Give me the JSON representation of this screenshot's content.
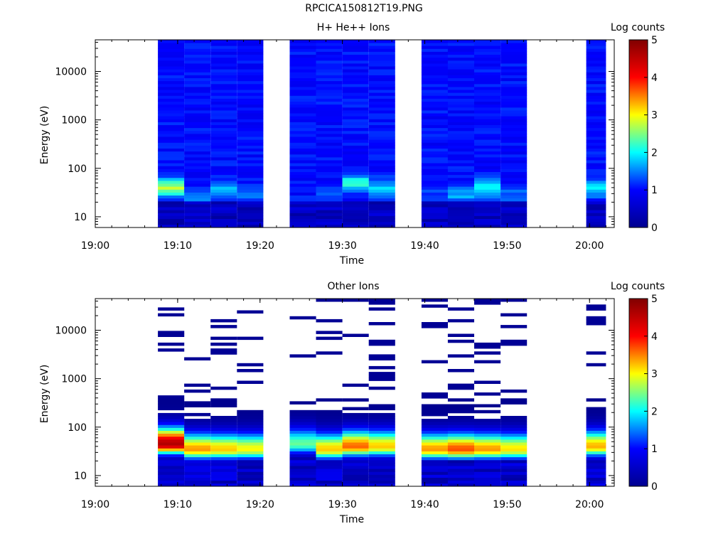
{
  "figure_title": "RPCICA150812T19.PNG",
  "colors": {
    "colormap": [
      "#00008f",
      "#0000ff",
      "#00ffff",
      "#ffff00",
      "#ff0000",
      "#800000"
    ],
    "axis": "#000000",
    "background": "#ffffff"
  },
  "chart_data": [
    {
      "type": "heatmap",
      "title": "H+ He++ Ions",
      "xlabel": "Time",
      "ylabel": "Energy (eV)",
      "y_scale": "log",
      "xlim": [
        "19:00",
        "20:03"
      ],
      "ylim": [
        6,
        45000
      ],
      "x_ticks": [
        "19:00",
        "19:10",
        "19:20",
        "19:30",
        "19:40",
        "19:50",
        "20:00"
      ],
      "y_ticks": [
        "10",
        "100",
        "1000",
        "10000"
      ],
      "colorbar": {
        "label": "Log counts",
        "range": [
          0,
          5
        ],
        "ticks": [
          "0",
          "1",
          "2",
          "3",
          "4",
          "5"
        ]
      },
      "time_bins": [
        {
          "start": "19:07.6",
          "end": "19:10.8",
          "peak": [
            40,
            2.5
          ]
        },
        {
          "start": "19:10.8",
          "end": "19:14.0",
          "peak": [
            25,
            1.4
          ]
        },
        {
          "start": "19:14.0",
          "end": "19:17.2",
          "peak": [
            35,
            1.6
          ]
        },
        {
          "start": "19:17.2",
          "end": "19:20.4",
          "peak": [
            30,
            1.3
          ]
        },
        {
          "start": "19:23.6",
          "end": "19:26.8",
          "peak": [
            12,
            0.9
          ]
        },
        {
          "start": "19:26.8",
          "end": "19:30.0",
          "peak": [
            30,
            1.2
          ]
        },
        {
          "start": "19:30.0",
          "end": "19:33.2",
          "peak": [
            50,
            2.0
          ]
        },
        {
          "start": "19:33.2",
          "end": "19:36.4",
          "peak": [
            40,
            1.6
          ]
        },
        {
          "start": "19:39.6",
          "end": "19:42.8",
          "peak": [
            30,
            1.1
          ]
        },
        {
          "start": "19:42.8",
          "end": "19:46.0",
          "peak": [
            30,
            1.5
          ]
        },
        {
          "start": "19:46.0",
          "end": "19:49.2",
          "peak": [
            40,
            1.9
          ]
        },
        {
          "start": "19:49.2",
          "end": "19:52.4",
          "peak": [
            30,
            1.2
          ]
        },
        {
          "start": "19:59.6",
          "end": "20:02.0",
          "peak": [
            40,
            1.8
          ]
        }
      ]
    },
    {
      "type": "heatmap",
      "title": "Other Ions",
      "xlabel": "Time",
      "ylabel": "Energy (eV)",
      "y_scale": "log",
      "xlim": [
        "19:00",
        "20:03"
      ],
      "ylim": [
        6,
        45000
      ],
      "x_ticks": [
        "19:00",
        "19:10",
        "19:20",
        "19:30",
        "19:40",
        "19:50",
        "20:00"
      ],
      "y_ticks": [
        "10",
        "100",
        "1000",
        "10000"
      ],
      "colorbar": {
        "label": "Log counts",
        "range": [
          0,
          5
        ],
        "ticks": [
          "0",
          "1",
          "2",
          "3",
          "4",
          "5"
        ]
      },
      "time_bins": [
        {
          "start": "19:07.6",
          "end": "19:10.8",
          "peak": [
            45,
            4.6
          ]
        },
        {
          "start": "19:10.8",
          "end": "19:14.0",
          "peak": [
            35,
            3.4
          ]
        },
        {
          "start": "19:14.0",
          "end": "19:17.2",
          "peak": [
            35,
            3.2
          ]
        },
        {
          "start": "19:17.2",
          "end": "19:20.4",
          "peak": [
            35,
            3.0
          ]
        },
        {
          "start": "19:23.6",
          "end": "19:26.8",
          "peak": [
            45,
            2.4
          ]
        },
        {
          "start": "19:26.8",
          "end": "19:30.0",
          "peak": [
            35,
            3.2
          ]
        },
        {
          "start": "19:30.0",
          "end": "19:33.2",
          "peak": [
            40,
            3.6
          ]
        },
        {
          "start": "19:33.2",
          "end": "19:36.4",
          "peak": [
            40,
            3.2
          ]
        },
        {
          "start": "19:39.6",
          "end": "19:42.8",
          "peak": [
            35,
            3.4
          ]
        },
        {
          "start": "19:42.8",
          "end": "19:46.0",
          "peak": [
            35,
            3.7
          ]
        },
        {
          "start": "19:46.0",
          "end": "19:49.2",
          "peak": [
            35,
            3.4
          ]
        },
        {
          "start": "19:49.2",
          "end": "19:52.4",
          "peak": [
            35,
            3.1
          ]
        },
        {
          "start": "19:59.6",
          "end": "20:02.0",
          "peak": [
            40,
            3.3
          ]
        }
      ]
    }
  ]
}
